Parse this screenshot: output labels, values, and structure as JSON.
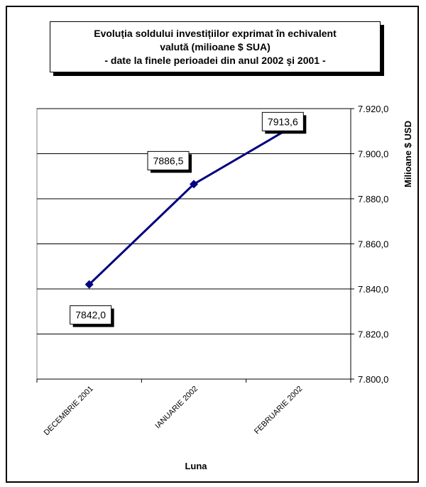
{
  "chart_data": {
    "type": "line",
    "title_lines": [
      "Evoluția soldului investițiilor exprimat în echivalent",
      "valută (milioane $ SUA)",
      "- date la finele perioadei din anul 2002 şi 2001 -"
    ],
    "categories": [
      "DECEMBRIE 2001",
      "IANUARIE 2002",
      "FEBRUARIE 2002"
    ],
    "series": [
      {
        "values": [
          7842.0,
          7886.5,
          7913.6
        ],
        "color": "#000080"
      }
    ],
    "data_labels": [
      "7842,0",
      "7886,5",
      "7913,6"
    ],
    "xlabel": "Luna",
    "ylabel": "Milioane $ USD",
    "ylim": [
      7800,
      7920
    ],
    "yticks": [
      7800,
      7820,
      7840,
      7860,
      7880,
      7900,
      7920
    ],
    "ytick_labels": [
      "7.800,0",
      "7.820,0",
      "7.840,0",
      "7.860,0",
      "7.880,0",
      "7.900,0",
      "7.920,0"
    ],
    "y_axis_side": "right",
    "grid": true,
    "legend": false
  }
}
